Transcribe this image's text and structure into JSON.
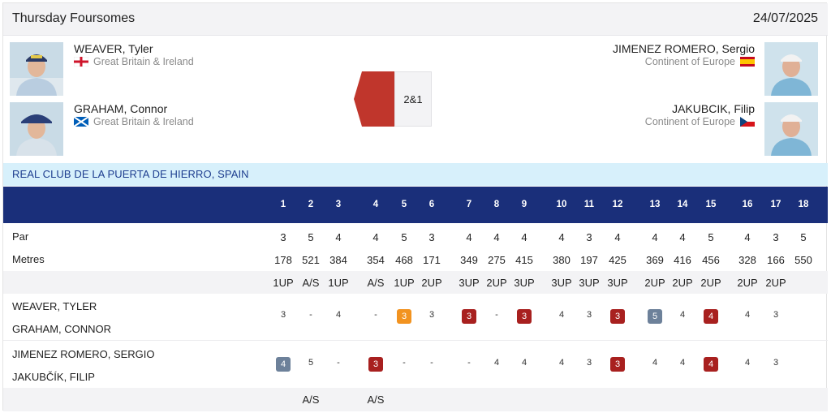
{
  "header": {
    "title": "Thursday Foursomes",
    "date": "24/07/2025"
  },
  "players": {
    "left_top": {
      "name": "WEAVER, Tyler",
      "team": "Great Britain & Ireland",
      "flag": "england-flag-icon"
    },
    "left_bottom": {
      "name": "GRAHAM, Connor",
      "team": "Great Britain & Ireland",
      "flag": "scotland-flag-icon"
    },
    "right_top": {
      "name": "JIMENEZ ROMERO, Sergio",
      "team": "Continent of Europe",
      "flag": "spain-flag-icon"
    },
    "right_bottom": {
      "name": "JAKUBCIK, Filip",
      "team": "Continent of Europe",
      "flag": "czech-flag-icon"
    }
  },
  "result": {
    "score": "2&1",
    "winner_color": "#c0362c"
  },
  "venue": "REAL CLUB DE LA PUERTA DE HIERRO, SPAIN",
  "holes": [
    "1",
    "2",
    "3",
    "4",
    "5",
    "6",
    "7",
    "8",
    "9",
    "10",
    "11",
    "12",
    "13",
    "14",
    "15",
    "16",
    "17",
    "18"
  ],
  "par": {
    "label": "Par",
    "values": [
      "3",
      "5",
      "4",
      "4",
      "5",
      "3",
      "4",
      "4",
      "4",
      "4",
      "3",
      "4",
      "4",
      "4",
      "5",
      "4",
      "3",
      "5"
    ]
  },
  "metres": {
    "label": "Metres",
    "values": [
      "178",
      "521",
      "384",
      "354",
      "468",
      "171",
      "349",
      "275",
      "415",
      "380",
      "197",
      "425",
      "369",
      "416",
      "456",
      "328",
      "166",
      "550"
    ]
  },
  "status_top": [
    "1UP",
    "A/S",
    "1UP",
    "A/S",
    "1UP",
    "2UP",
    "3UP",
    "2UP",
    "3UP",
    "3UP",
    "3UP",
    "3UP",
    "2UP",
    "2UP",
    "2UP",
    "2UP",
    "2UP",
    ""
  ],
  "team_a": {
    "player1": "WEAVER, TYLER",
    "player2": "GRAHAM, CONNOR",
    "scores": [
      {
        "v": "3",
        "style": ""
      },
      {
        "v": "-",
        "style": ""
      },
      {
        "v": "4",
        "style": ""
      },
      {
        "v": "-",
        "style": ""
      },
      {
        "v": "3",
        "style": "orange"
      },
      {
        "v": "3",
        "style": ""
      },
      {
        "v": "3",
        "style": "red"
      },
      {
        "v": "-",
        "style": ""
      },
      {
        "v": "3",
        "style": "red"
      },
      {
        "v": "4",
        "style": ""
      },
      {
        "v": "3",
        "style": ""
      },
      {
        "v": "3",
        "style": "red"
      },
      {
        "v": "5",
        "style": "slate"
      },
      {
        "v": "4",
        "style": ""
      },
      {
        "v": "4",
        "style": "red"
      },
      {
        "v": "4",
        "style": ""
      },
      {
        "v": "3",
        "style": ""
      },
      {
        "v": "",
        "style": ""
      }
    ]
  },
  "team_b": {
    "player1": "JIMENEZ ROMERO, SERGIO",
    "player2": "JAKUBČÍK, FILIP",
    "scores": [
      {
        "v": "4",
        "style": "slate"
      },
      {
        "v": "5",
        "style": ""
      },
      {
        "v": "-",
        "style": ""
      },
      {
        "v": "3",
        "style": "red"
      },
      {
        "v": "-",
        "style": ""
      },
      {
        "v": "-",
        "style": ""
      },
      {
        "v": "-",
        "style": ""
      },
      {
        "v": "4",
        "style": ""
      },
      {
        "v": "4",
        "style": ""
      },
      {
        "v": "4",
        "style": ""
      },
      {
        "v": "3",
        "style": ""
      },
      {
        "v": "3",
        "style": "red"
      },
      {
        "v": "4",
        "style": ""
      },
      {
        "v": "4",
        "style": ""
      },
      {
        "v": "4",
        "style": "red"
      },
      {
        "v": "4",
        "style": ""
      },
      {
        "v": "3",
        "style": ""
      },
      {
        "v": "",
        "style": ""
      }
    ]
  },
  "status_bottom": [
    "",
    "A/S",
    "",
    "A/S",
    "",
    "",
    "",
    "",
    "",
    "",
    "",
    "",
    "",
    "",
    "",
    "",
    "",
    ""
  ],
  "colors": {
    "header_bar": "#1a2f7a",
    "venue_bar": "#d7f0fb",
    "badge_red": "#a8201f",
    "badge_orange": "#f29320",
    "badge_slate": "#6d819a"
  }
}
